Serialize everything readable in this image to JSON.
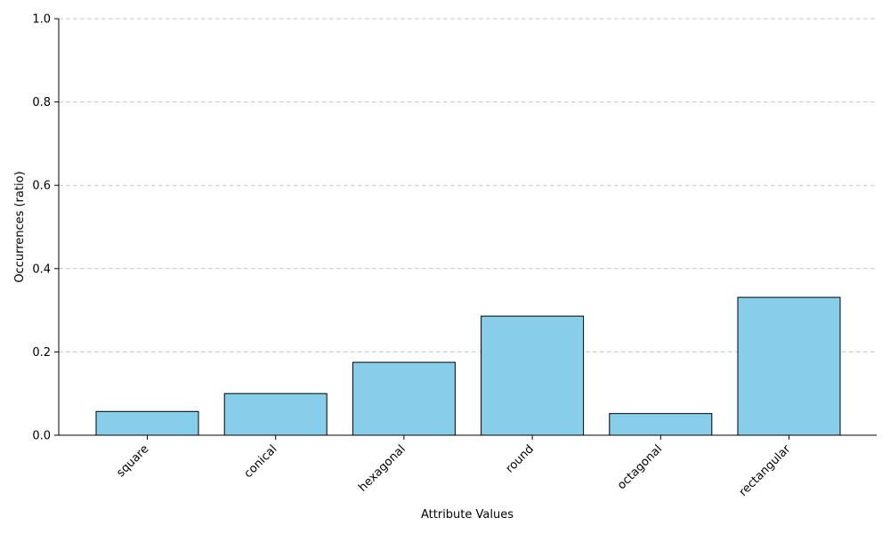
{
  "chart_data": {
    "type": "bar",
    "title": "",
    "xlabel": "Attribute Values",
    "ylabel": "Occurrences (ratio)",
    "categories": [
      "square",
      "conical",
      "hexagonal",
      "round",
      "octagonal",
      "rectangular"
    ],
    "values": [
      0.057,
      0.1,
      0.175,
      0.286,
      0.052,
      0.331
    ],
    "ylim": [
      0,
      1.0
    ],
    "yticks": [
      "0.0",
      "0.2",
      "0.4",
      "0.6",
      "0.8",
      "1.0"
    ],
    "grid": "y-dashed",
    "legend": "none",
    "bar_color": "#87CEEB",
    "bar_edge_color": "#000000",
    "grid_color": "#c8c8c8"
  }
}
